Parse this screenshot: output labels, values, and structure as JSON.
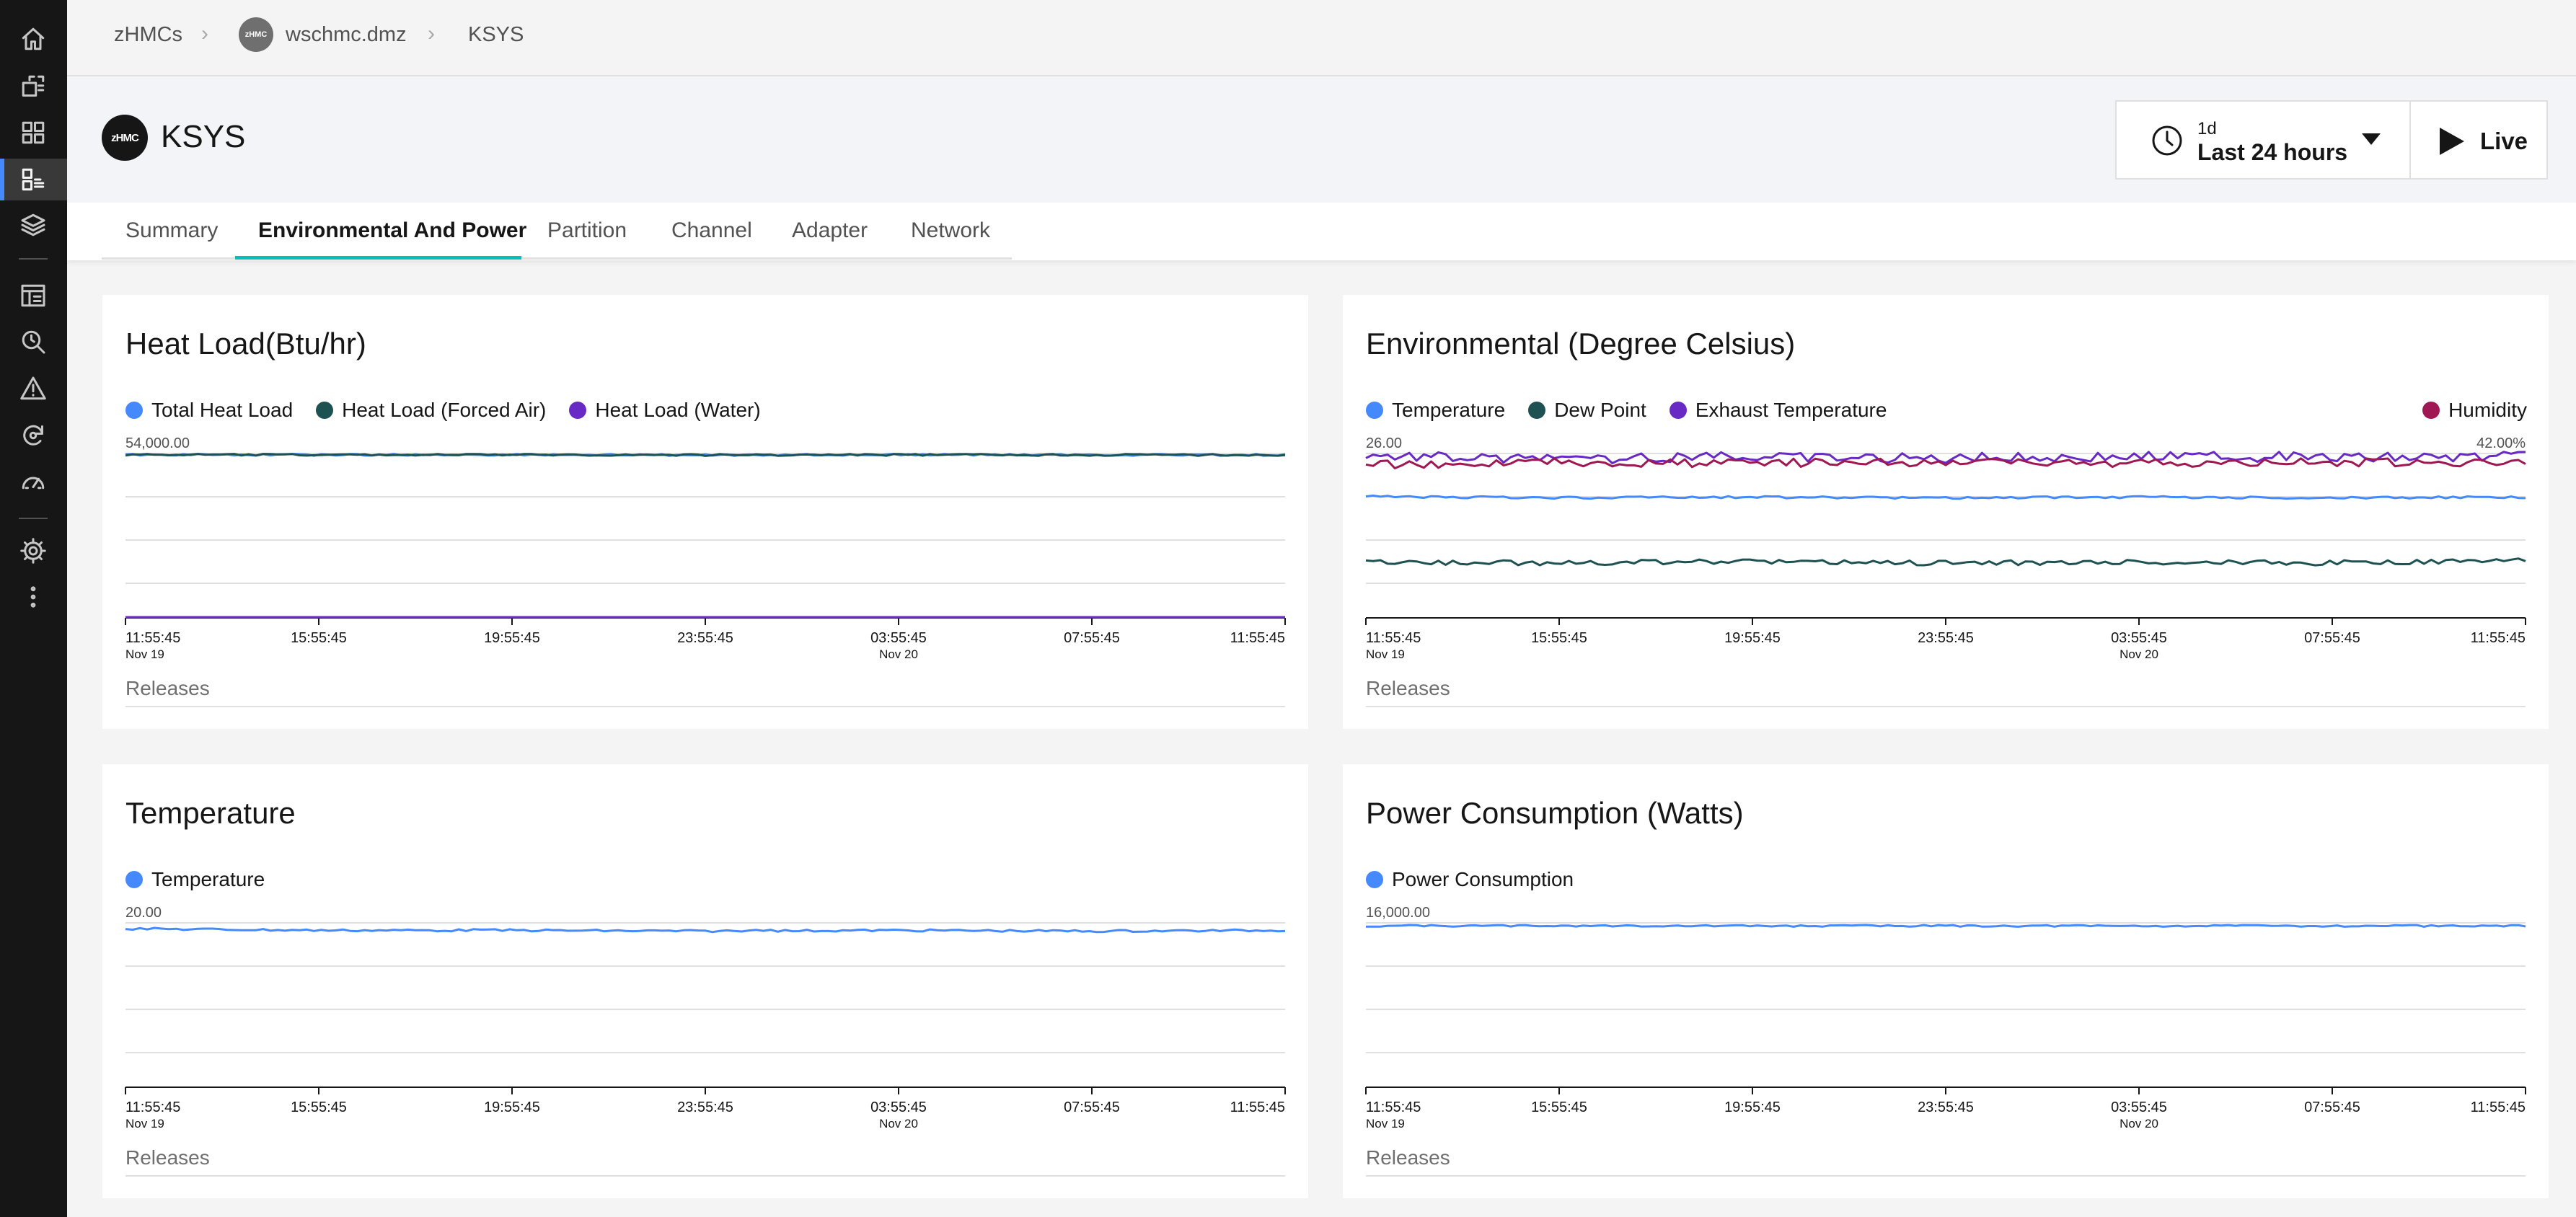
{
  "breadcrumb": {
    "items": [
      "zHMCs",
      "wschmc.dmz",
      "KSYS"
    ],
    "avatar_text": "zHMC"
  },
  "header": {
    "logo_text": "zHMC",
    "title": "KSYS",
    "time_range": {
      "short": "1d",
      "label": "Last 24 hours"
    },
    "live_label": "Live"
  },
  "rail": {
    "icons": [
      "home-icon",
      "dashboard-icon",
      "topology-icon",
      "systems-icon",
      "layers-icon",
      "report-icon",
      "search-history-icon",
      "warning-icon",
      "restart-icon",
      "gauge-icon",
      "settings-icon",
      "overflow-menu-icon"
    ],
    "active": "systems-icon"
  },
  "tabs": [
    {
      "label": "Summary"
    },
    {
      "label": "Environmental And Power"
    },
    {
      "label": "Partition"
    },
    {
      "label": "Channel"
    },
    {
      "label": "Adapter"
    },
    {
      "label": "Network"
    }
  ],
  "active_tab": "Environmental And Power",
  "releases_label": "Releases",
  "chart_data": [
    {
      "type": "line",
      "title": "Heat Load(Btu/hr)",
      "x": [
        "11:55:45",
        "15:55:45",
        "19:55:45",
        "23:55:45",
        "03:55:45",
        "07:55:45",
        "11:55:45"
      ],
      "x_dates": [
        "Nov 19",
        "",
        "",
        "",
        "Nov 20",
        "",
        ""
      ],
      "ylim": [
        0,
        54000
      ],
      "y_top_label": "54,000.00",
      "series": [
        {
          "name": "Total Heat Load",
          "color": "#4589ff",
          "values": [
            53600,
            53550,
            53580,
            53500,
            53560,
            53540,
            53520
          ]
        },
        {
          "name": "Heat Load (Forced Air)",
          "color": "#1d5152",
          "values": [
            53600,
            53550,
            53580,
            53500,
            53560,
            53540,
            53520
          ]
        },
        {
          "name": "Heat Load (Water)",
          "color": "#6929c4",
          "values": [
            0,
            0,
            0,
            0,
            0,
            0,
            0
          ]
        }
      ]
    },
    {
      "type": "line",
      "title": "Environmental (Degree Celsius)",
      "x": [
        "11:55:45",
        "15:55:45",
        "19:55:45",
        "23:55:45",
        "03:55:45",
        "07:55:45",
        "11:55:45"
      ],
      "x_dates": [
        "Nov 19",
        "",
        "",
        "",
        "Nov 20",
        "",
        ""
      ],
      "ylim": [
        0,
        26
      ],
      "y_top_label": "26.00",
      "y2lim": [
        0,
        42
      ],
      "y2_top_label": "42.00%",
      "series": [
        {
          "name": "Temperature",
          "color": "#4589ff",
          "axis": "left",
          "values": [
            19.2,
            19.0,
            19.1,
            19.0,
            19.1,
            19.0,
            19.1
          ]
        },
        {
          "name": "Dew Point",
          "color": "#1d5152",
          "axis": "left",
          "values": [
            8.8,
            8.7,
            8.9,
            8.7,
            8.8,
            8.7,
            9.0
          ]
        },
        {
          "name": "Exhaust Temperature",
          "color": "#6929c4",
          "axis": "left",
          "values": [
            25.8,
            25.0,
            25.5,
            25.3,
            25.6,
            25.4,
            25.6
          ]
        },
        {
          "name": "Humidity",
          "color": "#9f1853",
          "axis": "right",
          "values": [
            39.2,
            39.8,
            39.5,
            39.9,
            39.6,
            39.8,
            39.7
          ]
        }
      ]
    },
    {
      "type": "line",
      "title": "Temperature",
      "x": [
        "11:55:45",
        "15:55:45",
        "19:55:45",
        "23:55:45",
        "03:55:45",
        "07:55:45",
        "11:55:45"
      ],
      "x_dates": [
        "Nov 19",
        "",
        "",
        "",
        "Nov 20",
        "",
        ""
      ],
      "ylim": [
        0,
        20
      ],
      "y_top_label": "20.00",
      "series": [
        {
          "name": "Temperature",
          "color": "#4589ff",
          "values": [
            19.3,
            19.1,
            19.1,
            19.0,
            19.1,
            19.0,
            19.1
          ]
        }
      ]
    },
    {
      "type": "line",
      "title": "Power Consumption (Watts)",
      "x": [
        "11:55:45",
        "15:55:45",
        "19:55:45",
        "23:55:45",
        "03:55:45",
        "07:55:45",
        "11:55:45"
      ],
      "x_dates": [
        "Nov 19",
        "",
        "",
        "",
        "Nov 20",
        "",
        ""
      ],
      "ylim": [
        0,
        16000
      ],
      "y_top_label": "16,000.00",
      "series": [
        {
          "name": "Power Consumption",
          "color": "#4589ff",
          "values": [
            15700,
            15720,
            15700,
            15710,
            15700,
            15705,
            15700
          ]
        }
      ]
    }
  ]
}
